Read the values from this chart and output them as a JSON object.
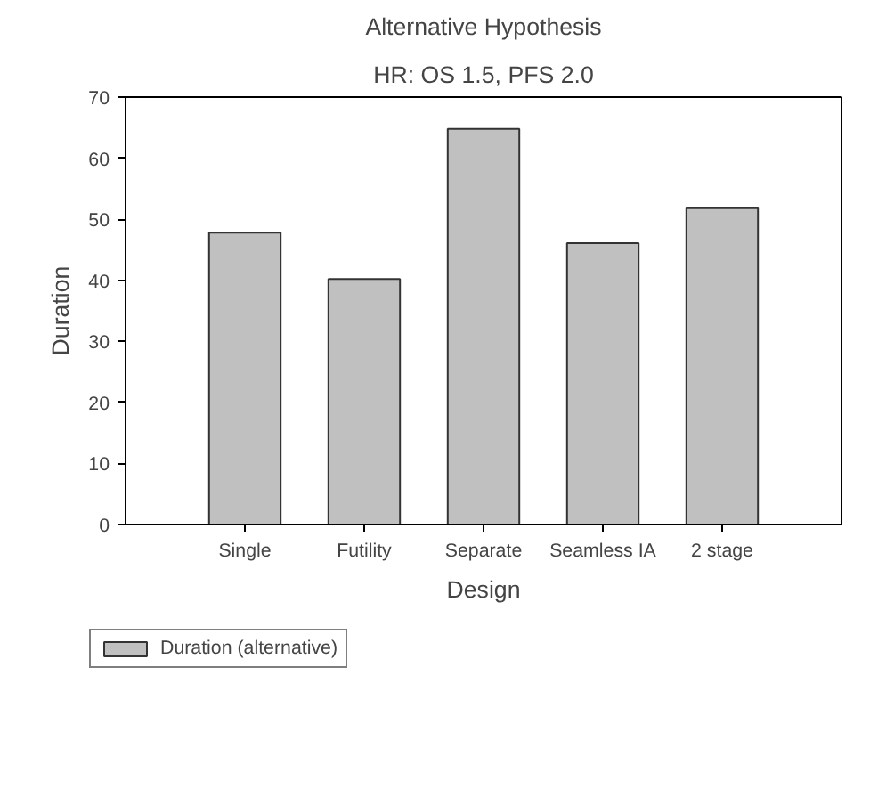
{
  "chart_data": {
    "type": "bar",
    "title": "Alternative Hypothesis",
    "subtitle": "HR: OS 1.5, PFS 2.0",
    "xlabel": "Design",
    "ylabel": "Duration",
    "categories": [
      "Single",
      "Futility",
      "Separate",
      "Seamless IA",
      "2 stage"
    ],
    "series": [
      {
        "name": "Duration (alternative)",
        "color": "#c0c0c0",
        "values": [
          47.8,
          40.2,
          64.8,
          46.1,
          51.8
        ]
      }
    ],
    "ylim": [
      0,
      70
    ],
    "yticks": [
      0,
      10,
      20,
      30,
      40,
      50,
      60,
      70
    ],
    "grid": false,
    "legend": "bottom left"
  }
}
